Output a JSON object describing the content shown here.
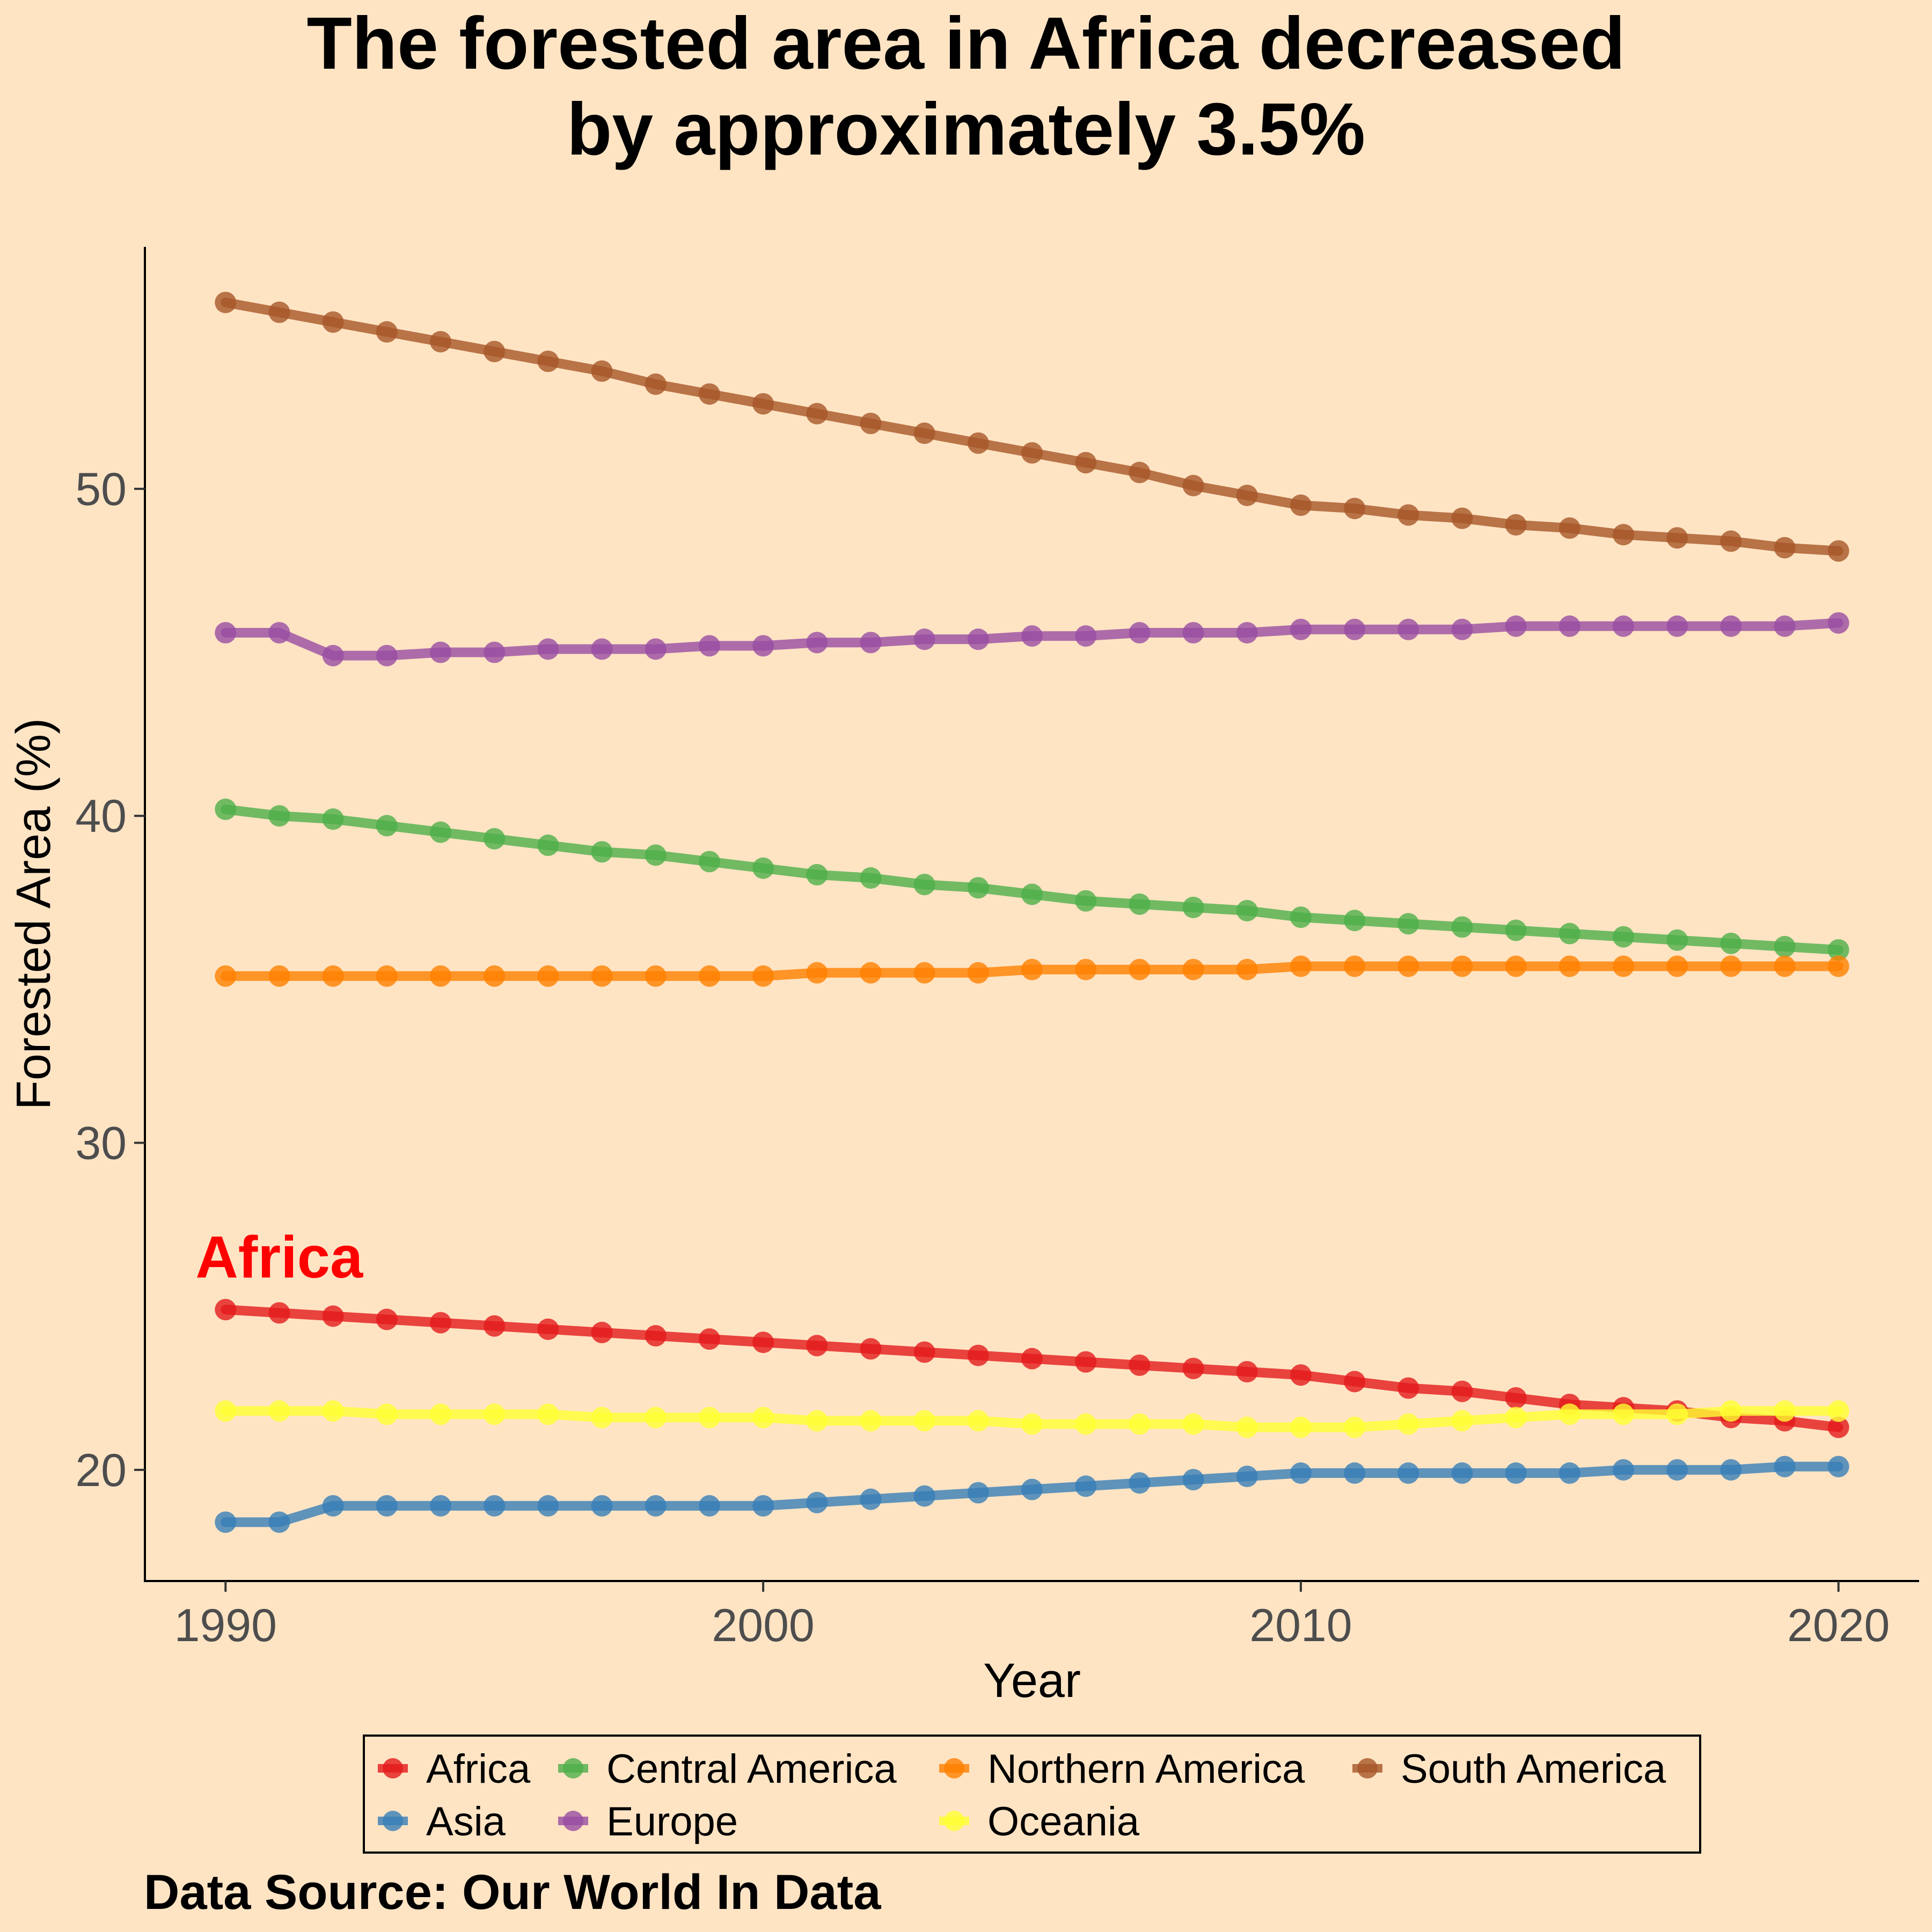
{
  "chart_data": {
    "type": "line",
    "title_lines": [
      "The forested area in Africa decreased",
      "by approximately 3.5%"
    ],
    "xlabel": "Year",
    "ylabel": "Forested Area (%)",
    "xlim": [
      1988.5,
      2021.5
    ],
    "ylim": [
      16.6,
      57.4
    ],
    "x_ticks": [
      1990,
      2000,
      2010,
      2020
    ],
    "y_ticks": [
      20,
      30,
      40,
      50
    ],
    "x": [
      1990,
      1991,
      1992,
      1993,
      1994,
      1995,
      1996,
      1997,
      1998,
      1999,
      2000,
      2001,
      2002,
      2003,
      2004,
      2005,
      2006,
      2007,
      2008,
      2009,
      2010,
      2011,
      2012,
      2013,
      2014,
      2015,
      2016,
      2017,
      2018,
      2019,
      2020
    ],
    "grid": false,
    "legend_position": "bottom",
    "series": [
      {
        "name": "Africa",
        "color": "#E41A1C",
        "values": [
          24.9,
          24.8,
          24.7,
          24.6,
          24.5,
          24.4,
          24.3,
          24.2,
          24.1,
          24.0,
          23.9,
          23.8,
          23.7,
          23.6,
          23.5,
          23.4,
          23.3,
          23.2,
          23.1,
          23.0,
          22.9,
          22.7,
          22.5,
          22.4,
          22.2,
          22.0,
          21.9,
          21.8,
          21.6,
          21.5,
          21.3
        ]
      },
      {
        "name": "Asia",
        "color": "#377EB8",
        "values": [
          18.4,
          18.4,
          18.9,
          18.9,
          18.9,
          18.9,
          18.9,
          18.9,
          18.9,
          18.9,
          18.9,
          19.0,
          19.1,
          19.2,
          19.3,
          19.4,
          19.5,
          19.6,
          19.7,
          19.8,
          19.9,
          19.9,
          19.9,
          19.9,
          19.9,
          19.9,
          20.0,
          20.0,
          20.0,
          20.1,
          20.1
        ]
      },
      {
        "name": "Central America",
        "color": "#4DAF4A",
        "values": [
          40.2,
          40.0,
          39.9,
          39.7,
          39.5,
          39.3,
          39.1,
          38.9,
          38.8,
          38.6,
          38.4,
          38.2,
          38.1,
          37.9,
          37.8,
          37.6,
          37.4,
          37.3,
          37.2,
          37.1,
          36.9,
          36.8,
          36.7,
          36.6,
          36.5,
          36.4,
          36.3,
          36.2,
          36.1,
          36.0,
          35.9
        ]
      },
      {
        "name": "Europe",
        "color": "#984EA3",
        "values": [
          45.6,
          45.6,
          44.9,
          44.9,
          45.0,
          45.0,
          45.1,
          45.1,
          45.1,
          45.2,
          45.2,
          45.3,
          45.3,
          45.4,
          45.4,
          45.5,
          45.5,
          45.6,
          45.6,
          45.6,
          45.7,
          45.7,
          45.7,
          45.7,
          45.8,
          45.8,
          45.8,
          45.8,
          45.8,
          45.8,
          45.9
        ]
      },
      {
        "name": "Northern America",
        "color": "#FF7F00",
        "values": [
          35.1,
          35.1,
          35.1,
          35.1,
          35.1,
          35.1,
          35.1,
          35.1,
          35.1,
          35.1,
          35.1,
          35.2,
          35.2,
          35.2,
          35.2,
          35.3,
          35.3,
          35.3,
          35.3,
          35.3,
          35.4,
          35.4,
          35.4,
          35.4,
          35.4,
          35.4,
          35.4,
          35.4,
          35.4,
          35.4,
          35.4
        ]
      },
      {
        "name": "Oceania",
        "color": "#FFFF33",
        "values": [
          21.8,
          21.8,
          21.8,
          21.7,
          21.7,
          21.7,
          21.7,
          21.6,
          21.6,
          21.6,
          21.6,
          21.5,
          21.5,
          21.5,
          21.5,
          21.4,
          21.4,
          21.4,
          21.4,
          21.3,
          21.3,
          21.3,
          21.4,
          21.5,
          21.6,
          21.7,
          21.7,
          21.7,
          21.8,
          21.8,
          21.8
        ]
      },
      {
        "name": "South America",
        "color": "#A65628",
        "values": [
          55.7,
          55.4,
          55.1,
          54.8,
          54.5,
          54.2,
          53.9,
          53.6,
          53.2,
          52.9,
          52.6,
          52.3,
          52.0,
          51.7,
          51.4,
          51.1,
          50.8,
          50.5,
          50.1,
          49.8,
          49.5,
          49.4,
          49.2,
          49.1,
          48.9,
          48.8,
          48.6,
          48.5,
          48.4,
          48.2,
          48.1
        ]
      }
    ],
    "legend_rows": [
      [
        "Africa",
        "Central America",
        "Northern America",
        "South America"
      ],
      [
        "Asia",
        "Europe",
        "Oceania"
      ]
    ],
    "annotation": {
      "text": "Africa",
      "x": 1990,
      "y": 24.9,
      "color": "#FF0000"
    },
    "caption": "Data Source: Our World In Data"
  }
}
